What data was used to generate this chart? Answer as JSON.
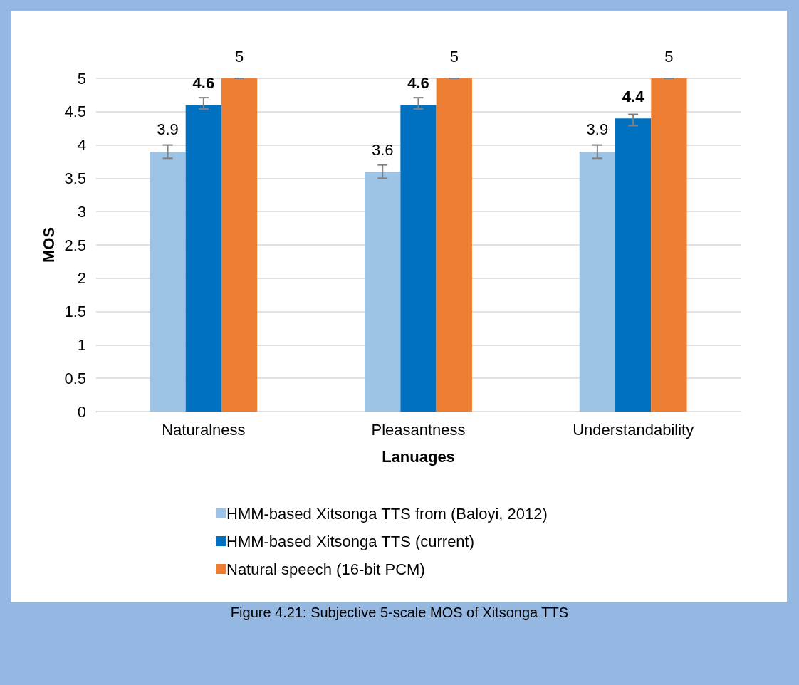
{
  "chart_data": {
    "type": "bar",
    "xlabel": "Lanuages",
    "ylabel": "MOS",
    "categories": [
      "Naturalness",
      "Pleasantness",
      "Understandability"
    ],
    "series": [
      {
        "name": "HMM-based Xitsonga TTS from (Baloyi, 2012)",
        "color": "#9dc3e6",
        "values": [
          3.9,
          3.6,
          3.9
        ],
        "errors": [
          0.1,
          0.1,
          0.1
        ]
      },
      {
        "name": "HMM-based Xitsonga TTS (current)",
        "color": "#0070c0",
        "values": [
          4.6,
          4.6,
          4.4
        ],
        "errors": [
          [
            4.54,
            4.71
          ],
          [
            4.54,
            4.71
          ],
          [
            4.29,
            4.46
          ]
        ]
      },
      {
        "name": "Natural speech (16-bit PCM)",
        "color": "#ed7d31",
        "values": [
          5,
          5,
          5
        ],
        "errors": [
          0,
          0,
          0
        ]
      }
    ],
    "ylim": [
      0,
      5
    ],
    "yticks": [
      0,
      0.5,
      1,
      1.5,
      2,
      2.5,
      3,
      3.5,
      4,
      4.5,
      5
    ],
    "grid": "y",
    "legend": "bottom",
    "data_labels": true,
    "annotations": [
      "Figure 4.21: Subjective 5-scale MOS of Xitsonga TTS"
    ]
  }
}
